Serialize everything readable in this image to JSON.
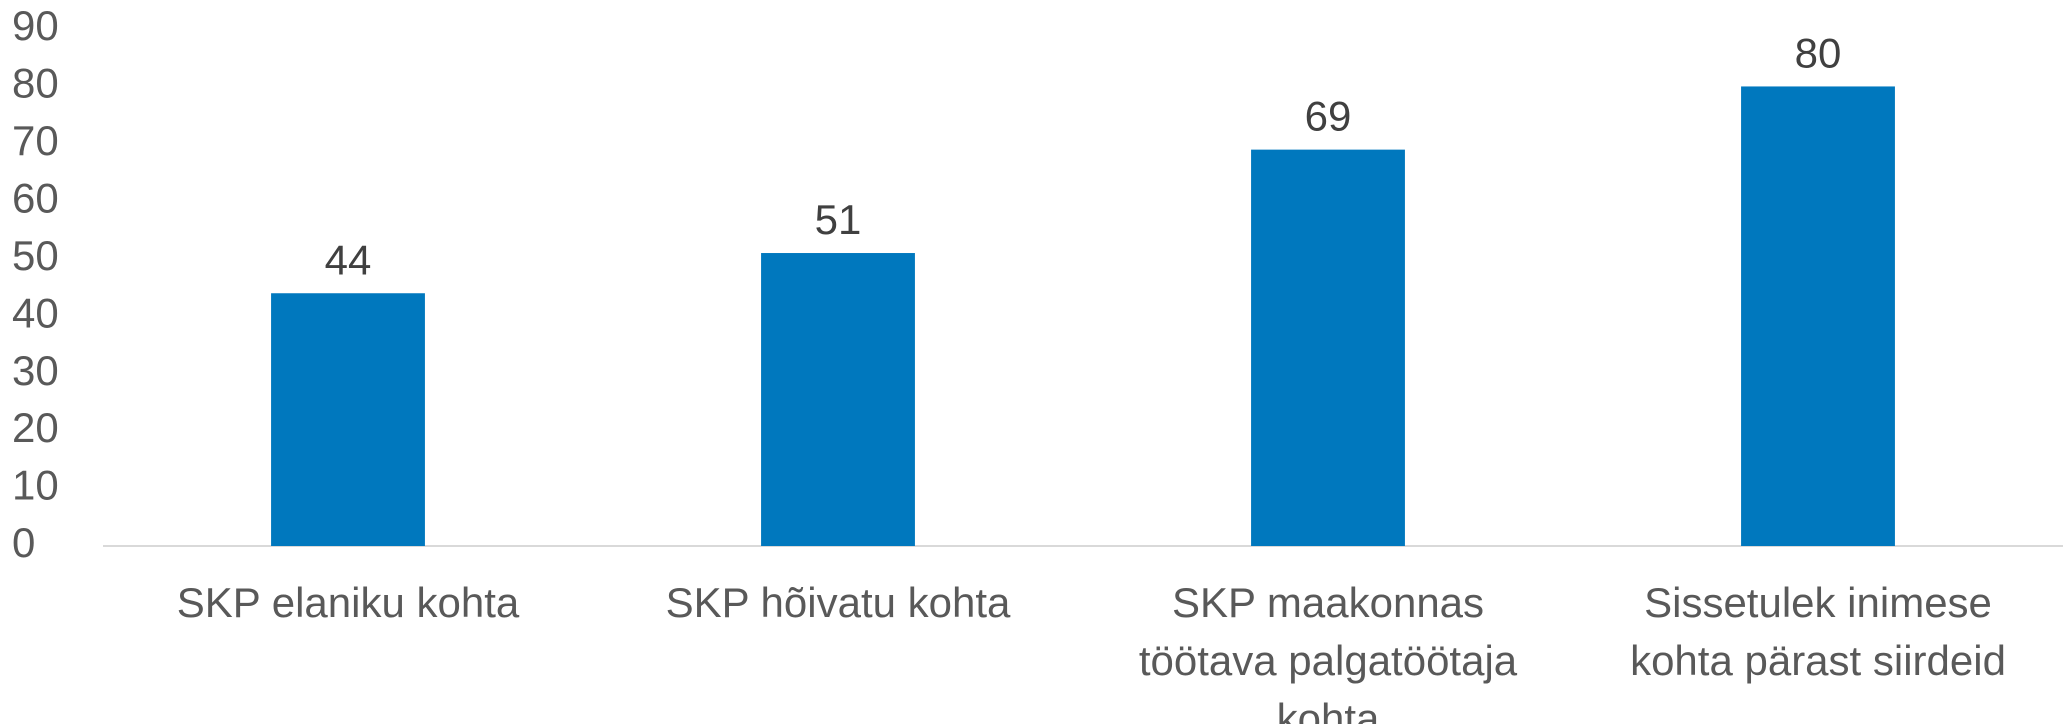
{
  "chart_data": {
    "type": "bar",
    "categories": [
      "SKP elaniku kohta",
      "SKP hõivatu kohta",
      "SKP maakonnas töötava palgatöötaja kohta",
      "Sissetulek inimese kohta pärast siirdeid"
    ],
    "values": [
      44,
      51,
      69,
      80
    ],
    "color": "#0078be",
    "ylim": [
      0,
      90
    ],
    "yticks": [
      0,
      10,
      20,
      30,
      40,
      50,
      60,
      70,
      80,
      90
    ],
    "grid": false
  }
}
